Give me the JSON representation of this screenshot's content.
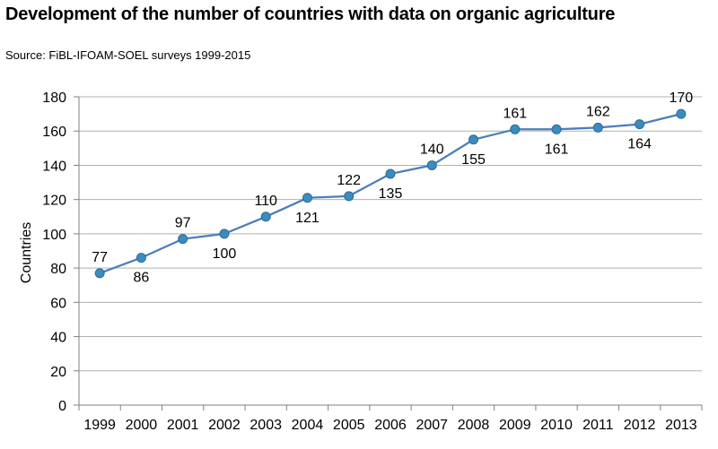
{
  "title": "Development of the number of countries with data on organic agriculture",
  "subtitle": "Source: FiBL-IFOAM-SOEL surveys 1999-2015",
  "colors": {
    "series": "#4A7EBB",
    "marker": "#3A8CC0",
    "marker_edge": "#2E6A93",
    "grid": "#B0B0B0"
  },
  "chart_data": {
    "type": "line",
    "title": "Development of the number of countries with data on organic agriculture",
    "subtitle": "Source: FiBL-IFOAM-SOEL surveys 1999-2015",
    "xlabel": "",
    "ylabel": "Countries",
    "categories": [
      "1999",
      "2000",
      "2001",
      "2002",
      "2003",
      "2004",
      "2005",
      "2006",
      "2007",
      "2008",
      "2009",
      "2010",
      "2011",
      "2012",
      "2013"
    ],
    "values": [
      77,
      86,
      97,
      100,
      110,
      121,
      122,
      135,
      140,
      155,
      161,
      161,
      162,
      164,
      170
    ],
    "label_position": [
      "above",
      "below",
      "above",
      "below",
      "above",
      "below",
      "above",
      "below",
      "above",
      "below",
      "above",
      "below",
      "above",
      "below",
      "above"
    ],
    "ylim": [
      0,
      180
    ],
    "yticks": [
      0,
      20,
      40,
      60,
      80,
      100,
      120,
      140,
      160,
      180
    ],
    "grid": true,
    "legend": "none"
  }
}
